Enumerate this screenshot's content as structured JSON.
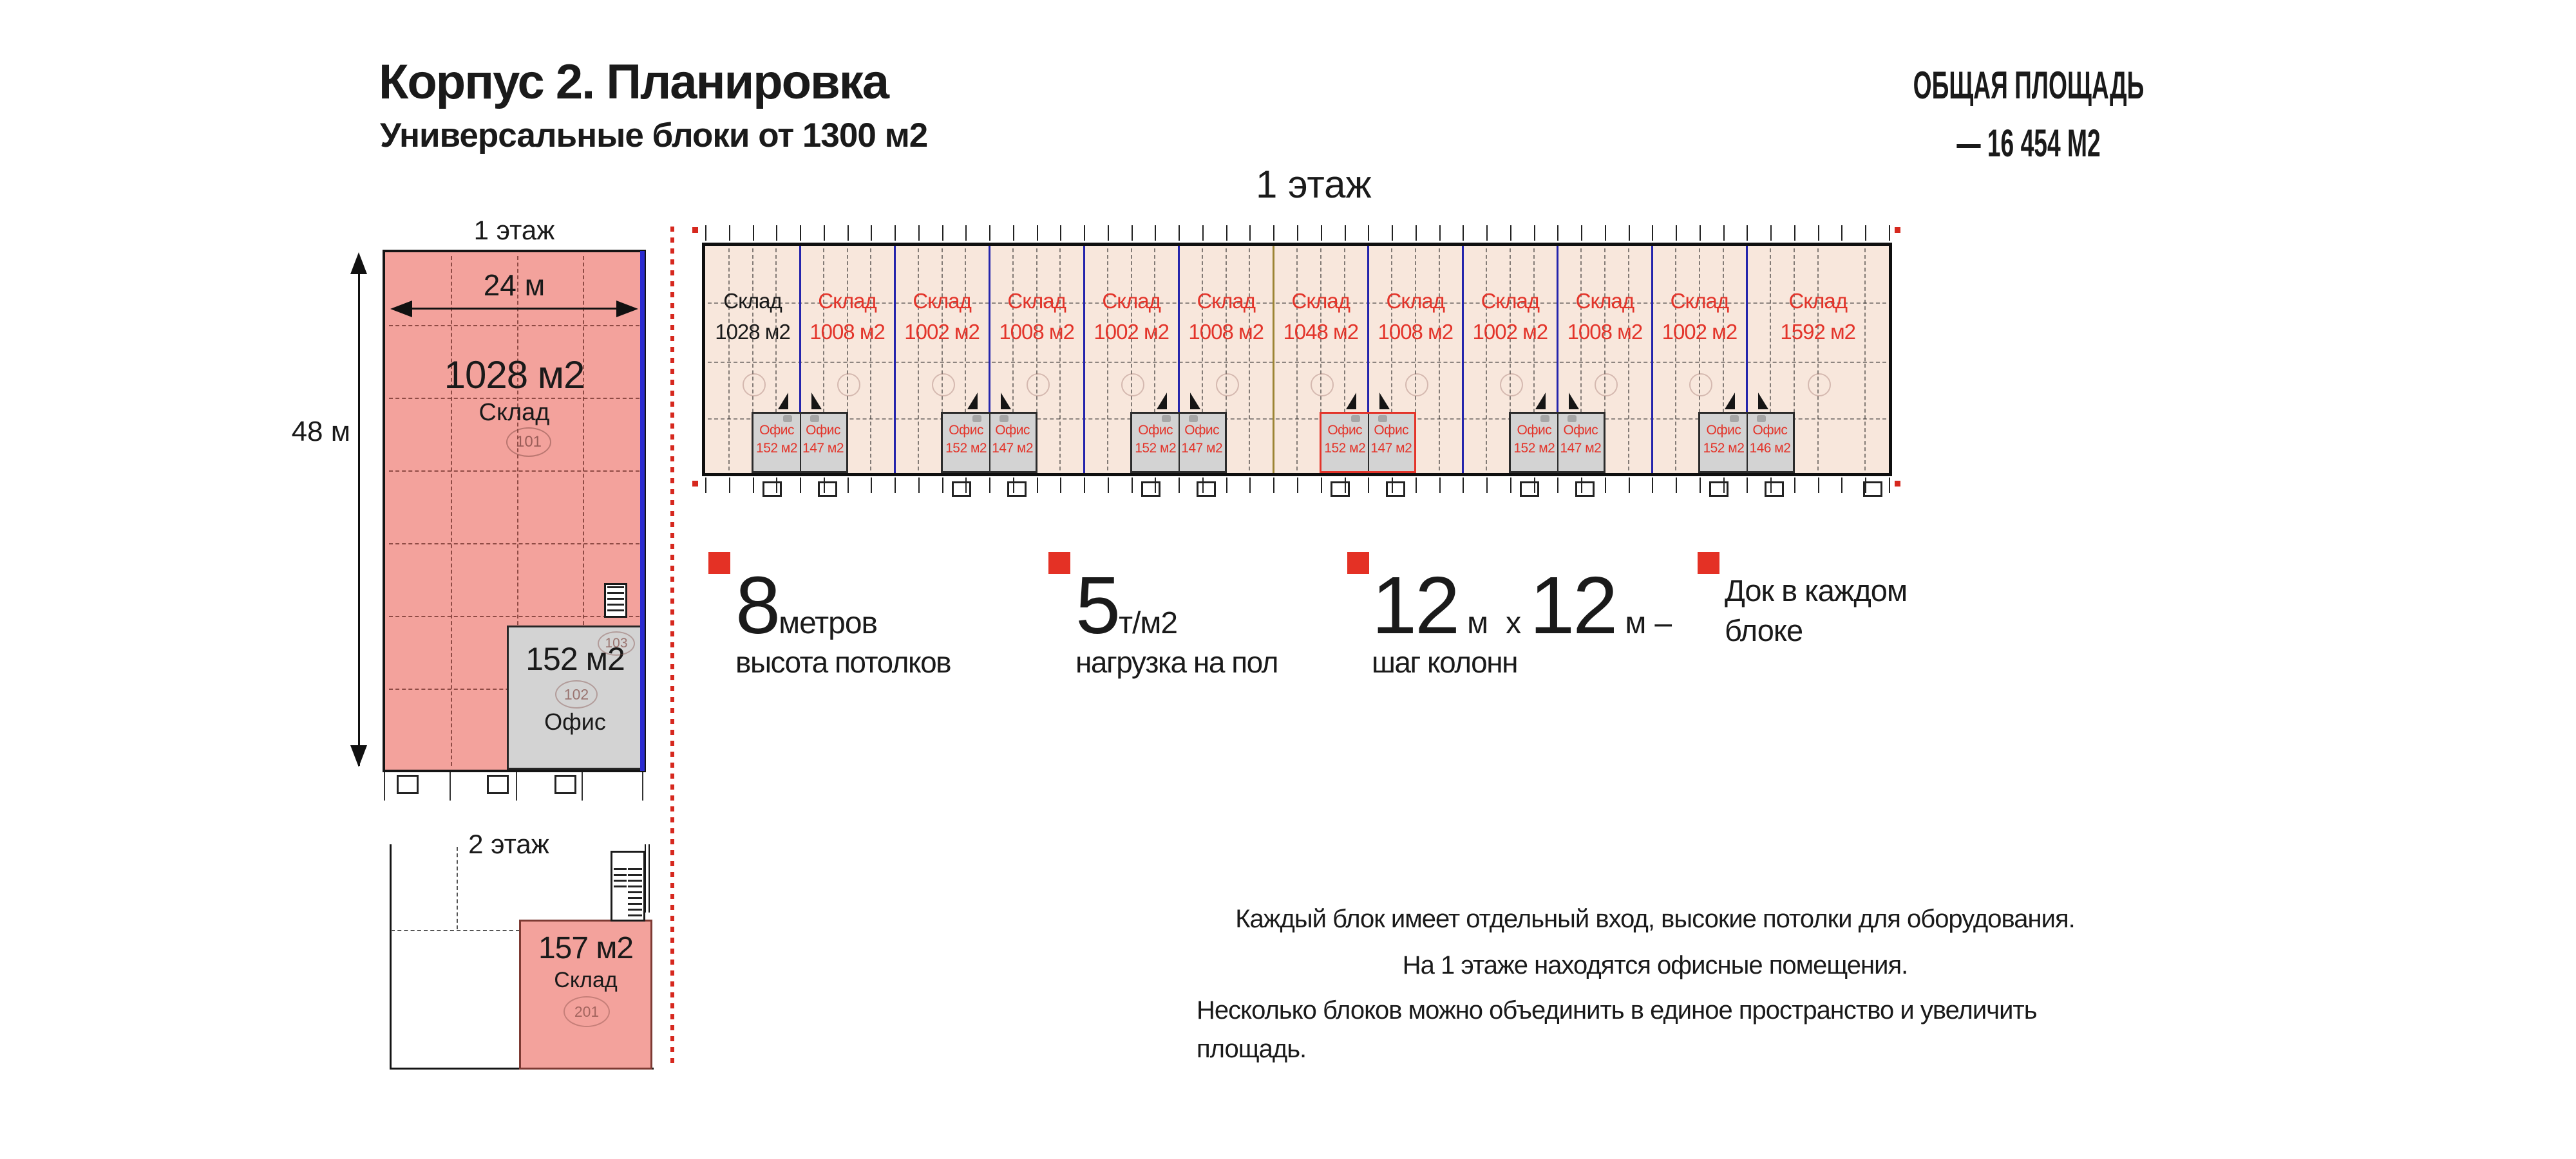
{
  "header": {
    "title": "Корпус 2. Планировка",
    "subtitle": "Универсальные блоки от 1300 м2"
  },
  "total_area": {
    "line1": "ОБЩАЯ ПЛОЩАДЬ",
    "line2": "— 16 454  М2"
  },
  "detail": {
    "floor1": {
      "label": "1 этаж",
      "width_dim": "24 м",
      "height_dim": "48 м",
      "warehouse": {
        "area": "1028 м2",
        "type": "Склад",
        "room_id": "101"
      },
      "office": {
        "area": "152 м2",
        "type": "Офис",
        "room_id": "102",
        "room_id2": "103"
      }
    },
    "floor2": {
      "label": "2 этаж",
      "unit": {
        "area": "157 м2",
        "type": "Склад",
        "room_id": "201"
      }
    }
  },
  "overview": {
    "title": "1 этаж",
    "block_type_label": "Склад",
    "office_type_label": "Офис",
    "blocks": [
      {
        "area": "1028 м2",
        "label_color": "#1a1a1a"
      },
      {
        "area": "1008 м2"
      },
      {
        "area": "1002 м2"
      },
      {
        "area": "1008 м2"
      },
      {
        "area": "1002 м2"
      },
      {
        "area": "1008 м2"
      },
      {
        "area": "1048 м2"
      },
      {
        "area": "1008 м2"
      },
      {
        "area": "1002 м2"
      },
      {
        "area": "1008 м2"
      },
      {
        "area": "1002 м2"
      },
      {
        "area": "1592 м2",
        "wide": true
      }
    ],
    "office_pairs": [
      {
        "left": "152 м2",
        "right": "147 м2",
        "highlight": false
      },
      {
        "left": "152 м2",
        "right": "147 м2",
        "highlight": false
      },
      {
        "left": "152 м2",
        "right": "147 м2",
        "highlight": false
      },
      {
        "left": "152 м2",
        "right": "147 м2",
        "highlight": true
      },
      {
        "left": "152 м2",
        "right": "147 м2",
        "highlight": false
      },
      {
        "left": "152 м2",
        "right": "146 м2",
        "highlight": false
      }
    ]
  },
  "features": [
    {
      "value": "8",
      "unit": "метров",
      "caption": "высота потолков"
    },
    {
      "value": "5",
      "unit": "т/м2",
      "caption": "нагрузка на пол"
    },
    {
      "value": "12",
      "unit": "м",
      "times": "х",
      "value2": "12",
      "unit2": "м",
      "dash": "–",
      "caption": "шаг колонн"
    },
    {
      "line1": "Док в каждом",
      "line2": "блоке"
    }
  ],
  "notes": [
    "Каждый блок имеет отдельный вход, высокие потолки для оборудования.",
    "На 1 этаже находятся офисные помещения.",
    "Несколько блоков можно объединить в единое пространство и увеличить площадь."
  ],
  "colors": {
    "accent_red": "#e3342a",
    "bullet_red": "#e43125",
    "pink_fill": "#f3a29c",
    "peach_fill": "#f8e7dc",
    "office_gray": "#d3d3d3",
    "divider_navy": "#2424ac",
    "divider_olive": "#9c8433",
    "edge_blue": "#2b2bd0",
    "dotted_red": "#d6281e"
  }
}
